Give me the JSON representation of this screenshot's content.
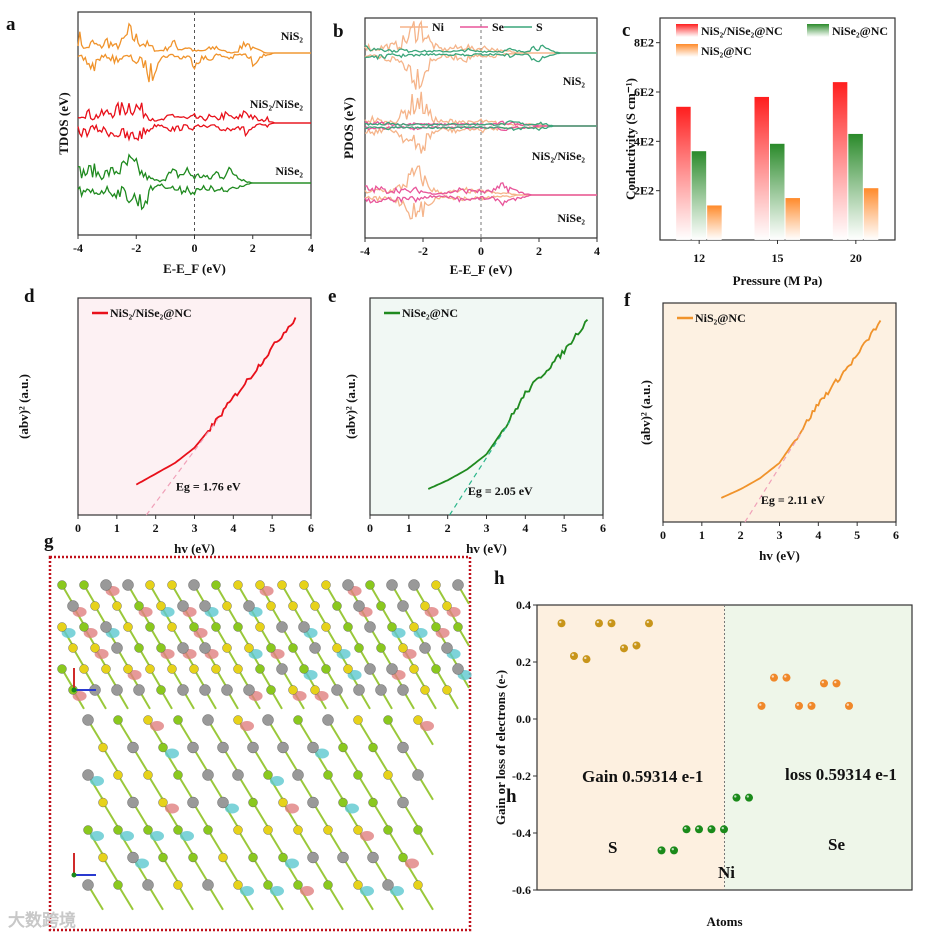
{
  "panel_labels": {
    "a": "a",
    "b": "b",
    "c": "c",
    "d": "d",
    "e": "e",
    "f": "f",
    "g": "g",
    "h": "h",
    "h_dup": "h"
  },
  "watermark": "大数跨境",
  "colors": {
    "nis2": "#f0932b",
    "hetero": "#e8101a",
    "nise2": "#1f8a1f",
    "ni_pdos": "#f5b48a",
    "se_pdos": "#e8559a",
    "s_pdos": "#3aa57a",
    "s_atom": "#c8951a",
    "ni_atom": "#1a8a1a",
    "se_atom": "#f0882a"
  },
  "chart_data": [
    {
      "id": "a",
      "type": "line",
      "title": "",
      "xlabel": "E-E_F (eV)",
      "ylabel": "TDOS (eV)",
      "xlim": [
        -4,
        4
      ],
      "xticks": [
        "-4",
        "-2",
        "0",
        "2",
        "4"
      ],
      "fermi_line": 0,
      "energy_grid": {
        "start": -4,
        "step": 0.25,
        "count": 33
      },
      "series": [
        {
          "name": "NiS₂",
          "color": "#f0932b",
          "up": [
            0.9,
            0.2,
            0.5,
            0.3,
            0.6,
            0.3,
            0.5,
            1.0,
            0.7,
            0.5,
            0.3,
            0.1,
            0.2,
            0.5,
            0.2,
            0.3,
            0.1,
            0.1,
            0.2,
            0.3,
            0.1,
            0.0,
            0.1,
            0.6,
            0.2,
            0.1,
            0,
            0,
            0,
            0,
            0,
            0,
            0
          ],
          "down": [
            0.3,
            0.4,
            0.9,
            0.3,
            0.2,
            0.4,
            0.3,
            0.2,
            0.5,
            0.6,
            1.4,
            0.4,
            0.2,
            0.1,
            0.3,
            0.2,
            0.6,
            0.3,
            0.4,
            0.1,
            0.2,
            0.3,
            0.1,
            0.1,
            0.6,
            0.2,
            0.1,
            0,
            0,
            0,
            0,
            0,
            0
          ]
        },
        {
          "name": "NiS₂/NiSe₂",
          "color": "#e8101a",
          "up": [
            0.5,
            0.6,
            0.3,
            0.4,
            0.5,
            0.6,
            0.7,
            0.9,
            0.8,
            0.6,
            0.3,
            0.1,
            0.2,
            0.4,
            0.3,
            0.2,
            0.3,
            0.2,
            0.3,
            0.2,
            0.4,
            0.3,
            0.2,
            0.6,
            0.3,
            0.1,
            0.2,
            0,
            0,
            0,
            0,
            0,
            0
          ]
        },
        {
          "name": "NiSe₂",
          "color": "#1f8a1f",
          "up": [
            0.6,
            0.5,
            0.7,
            0.4,
            0.5,
            0.6,
            0.7,
            1.0,
            0.8,
            0.4,
            0.2,
            0.1,
            0.3,
            0.5,
            0.4,
            0.6,
            0.3,
            0.4,
            0.2,
            0.5,
            0.4,
            0.6,
            0.4,
            0.1,
            0,
            0,
            0,
            0,
            0,
            0,
            0,
            0,
            0
          ],
          "down": [
            0.4,
            0.7,
            0.6,
            0.5,
            0.4,
            0.6,
            0.5,
            0.8,
            1.0,
            1.2,
            0.4,
            0.1,
            0.2,
            0.3,
            0.5,
            0.3,
            0.6,
            0.4,
            0.3,
            0.5,
            0.6,
            0.3,
            0.2,
            0.1,
            0,
            0,
            0,
            0,
            0,
            0,
            0,
            0,
            0
          ]
        }
      ]
    },
    {
      "id": "b",
      "type": "line",
      "xlabel": "E-E_F (eV)",
      "ylabel": "PDOS (eV)",
      "xlim": [
        -4,
        4
      ],
      "xticks": [
        "-4",
        "-2",
        "0",
        "2",
        "4"
      ],
      "fermi_line": 0,
      "legend": [
        "Ni",
        "Se",
        "S"
      ],
      "legend_position": "top",
      "energy_grid": {
        "start": -4,
        "step": 0.25,
        "count": 33
      },
      "groups": [
        {
          "name": "NiS₂",
          "ni": [
            0.5,
            0.2,
            0.3,
            0.4,
            0.4,
            0.6,
            0.9,
            1.6,
            1.4,
            0.6,
            0.3,
            0.2,
            0.3,
            0.3,
            0.4,
            0.2,
            0.3,
            0.3,
            0.2,
            0.1,
            0.1,
            0,
            0,
            0,
            0,
            0,
            0,
            0,
            0,
            0,
            0,
            0,
            0
          ],
          "s": [
            0.3,
            0.2,
            0.3,
            0.2,
            0.1,
            0.2,
            0.1,
            0.2,
            0.1,
            0.1,
            0.1,
            0.1,
            0.1,
            0.1,
            0.2,
            0.1,
            0.1,
            0.1,
            0.1,
            0.1,
            0.2,
            0.1,
            0.1,
            0.3,
            0.4,
            0.2,
            0.1,
            0,
            0,
            0,
            0,
            0,
            0
          ]
        },
        {
          "name": "NiS₂/NiSe₂",
          "ni": [
            0.3,
            0.4,
            0.3,
            0.2,
            0.3,
            0.6,
            1.0,
            1.5,
            1.3,
            0.6,
            0.3,
            0.2,
            0.3,
            0.3,
            0.2,
            0.2,
            0.3,
            0.2,
            0.2,
            0.1,
            0.1,
            0.1,
            0.1,
            0.1,
            0.1,
            0,
            0,
            0,
            0,
            0,
            0,
            0,
            0
          ],
          "se": [
            0.2,
            0.1,
            0.2,
            0.1,
            0.1,
            0.1,
            0.1,
            0.2,
            0.1,
            0.1,
            0.1,
            0.1,
            0.1,
            0.1,
            0.1,
            0.1,
            0.1,
            0.1,
            0.1,
            0.2,
            0.2,
            0.1,
            0.1,
            0.1,
            0,
            0,
            0,
            0,
            0,
            0,
            0,
            0,
            0
          ],
          "s": [
            0.1,
            0.1,
            0.1,
            0.2,
            0.1,
            0.1,
            0.1,
            0.1,
            0.1,
            0.1,
            0.1,
            0.1,
            0.1,
            0.1,
            0.1,
            0.1,
            0.1,
            0.1,
            0.1,
            0.1,
            0.2,
            0.2,
            0.1,
            0.1,
            0.2,
            0.1,
            0,
            0,
            0,
            0,
            0,
            0,
            0
          ]
        },
        {
          "name": "NiSe₂",
          "ni": [
            0.2,
            0.2,
            0.3,
            0.2,
            0.3,
            0.5,
            0.9,
            1.3,
            1.0,
            0.4,
            0.2,
            0.1,
            0.2,
            0.2,
            0.3,
            0.2,
            0.2,
            0.2,
            0.1,
            0.1,
            0.1,
            0,
            0,
            0,
            0,
            0,
            0,
            0,
            0,
            0,
            0,
            0,
            0
          ],
          "se": [
            0.4,
            0.3,
            0.4,
            0.2,
            0.3,
            0.3,
            0.2,
            0.3,
            0.2,
            0.1,
            0.1,
            0.1,
            0.2,
            0.3,
            0.2,
            0.3,
            0.2,
            0.2,
            0.3,
            0.5,
            0.4,
            0.2,
            0.1,
            0,
            0,
            0,
            0,
            0,
            0,
            0,
            0,
            0,
            0
          ]
        }
      ]
    },
    {
      "id": "c",
      "type": "bar",
      "xlabel": "Pressure (M Pa)",
      "ylabel": "Conductivity (S cm⁻¹)",
      "categories": [
        "12",
        "15",
        "20"
      ],
      "ylim": [
        0,
        900
      ],
      "yticks": [
        {
          "v": 200,
          "l": "2E2"
        },
        {
          "v": 400,
          "l": "4E2"
        },
        {
          "v": 600,
          "l": "6E2"
        },
        {
          "v": 800,
          "l": "8E2"
        }
      ],
      "legend_position": "top",
      "series": [
        {
          "name": "NiS₂/NiSe₂@NC",
          "color": "#ff1e1e",
          "values": [
            540,
            580,
            640
          ]
        },
        {
          "name": "NiSe₂@NC",
          "color": "#2a8a2a",
          "values": [
            360,
            390,
            430
          ]
        },
        {
          "name": "NiS₂@NC",
          "color": "#ff8a2a",
          "values": [
            140,
            170,
            210
          ]
        }
      ]
    },
    {
      "id": "d",
      "type": "line",
      "xlabel": "hv (eV)",
      "ylabel": "(abv)² (a.u.)",
      "xlim": [
        0,
        6
      ],
      "ylim": [
        0,
        1
      ],
      "xticks": [
        "0",
        "1",
        "2",
        "3",
        "4",
        "5",
        "6"
      ],
      "background": "#fdf1f3",
      "color": "#e8101a",
      "tangent_color": "#f0a0b8",
      "legend": "NiS₂/NiSe₂@NC",
      "annotation": "Eg = 1.76 eV",
      "eg": 1.76,
      "x": [
        1.5,
        2,
        2.5,
        3,
        3.5,
        4,
        4.5,
        5,
        5.6
      ],
      "y": [
        0.14,
        0.19,
        0.24,
        0.31,
        0.42,
        0.54,
        0.65,
        0.77,
        0.91
      ]
    },
    {
      "id": "e",
      "type": "line",
      "xlabel": "hv (eV)",
      "ylabel": "(abv)² (a.u.)",
      "xlim": [
        0,
        6
      ],
      "ylim": [
        0,
        1
      ],
      "xticks": [
        "0",
        "1",
        "2",
        "3",
        "4",
        "5",
        "6"
      ],
      "background": "#f1f8f4",
      "color": "#1f8a1f",
      "tangent_color": "#2ab58a",
      "legend": "NiSe₂@NC",
      "annotation": "Eg = 2.05 eV",
      "eg": 2.05,
      "x": [
        1.5,
        2,
        2.5,
        3,
        3.5,
        4,
        4.5,
        5,
        5.6
      ],
      "y": [
        0.12,
        0.16,
        0.21,
        0.28,
        0.41,
        0.56,
        0.66,
        0.755,
        0.9
      ]
    },
    {
      "id": "f",
      "type": "line",
      "xlabel": "hv (eV)",
      "ylabel": "(abv)² (a.u.)",
      "xlim": [
        0,
        6
      ],
      "ylim": [
        0,
        1
      ],
      "xticks": [
        "0",
        "1",
        "2",
        "3",
        "4",
        "5",
        "6"
      ],
      "background": "#fdf1e2",
      "color": "#f0932b",
      "tangent_color": "#f0a0b8",
      "legend": "NiS₂@NC",
      "annotation": "Eg = 2.11 eV",
      "eg": 2.11,
      "x": [
        1.5,
        2,
        2.5,
        3,
        3.5,
        4,
        4.5,
        5,
        5.6
      ],
      "y": [
        0.11,
        0.15,
        0.2,
        0.27,
        0.4,
        0.54,
        0.65,
        0.76,
        0.92
      ]
    },
    {
      "id": "h",
      "type": "scatter",
      "xlabel": "Atoms",
      "ylabel": "Gain or loss of electrons (e-)",
      "ylim": [
        -0.6,
        0.4
      ],
      "yticks": [
        "0.4",
        "0.2",
        "0.0",
        "-0.2",
        "-0.4",
        "-0.6"
      ],
      "annotations": {
        "gain": "Gain 0.59314 e-1",
        "loss": "loss 0.59314 e-1",
        "S": "S",
        "Ni": "Ni",
        "Se": "Se"
      },
      "series": [
        {
          "name": "S",
          "color": "#c8951a",
          "x": [
            1,
            2,
            3,
            4,
            5,
            6,
            7,
            8
          ],
          "y": [
            0.336,
            0.221,
            0.21,
            0.336,
            0.336,
            0.248,
            0.258,
            0.336
          ]
        },
        {
          "name": "Ni",
          "color": "#1a8a1a",
          "x": [
            9,
            10,
            11,
            12,
            13,
            14,
            15,
            16
          ],
          "y": [
            -0.461,
            -0.461,
            -0.387,
            -0.387,
            -0.387,
            -0.387,
            -0.276,
            -0.276
          ]
        },
        {
          "name": "Se",
          "color": "#f0882a",
          "x": [
            17,
            18,
            19,
            20,
            21,
            22,
            23,
            24
          ],
          "y": [
            0.046,
            0.145,
            0.145,
            0.046,
            0.046,
            0.125,
            0.125,
            0.046
          ]
        }
      ]
    }
  ]
}
